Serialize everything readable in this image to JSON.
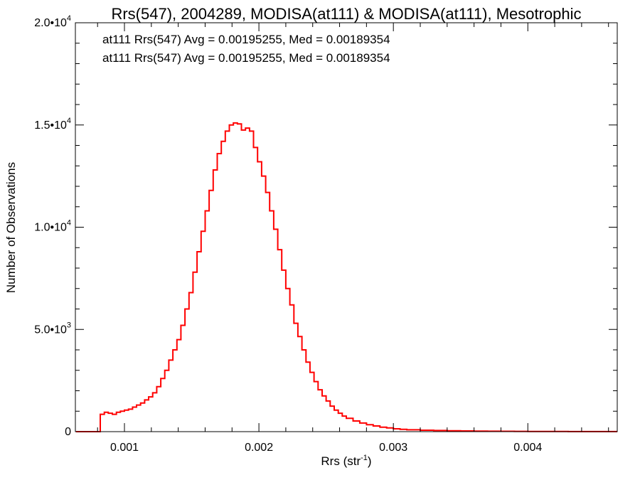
{
  "chart_data": {
    "type": "line",
    "title": "Rrs(547), 2004289, MODISA(at111) & MODISA(at111), Mesotrophic",
    "xlabel": "Rrs (str",
    "xlabel_sup": "-1",
    "xlabel_end": ")",
    "ylabel": "Number of Observations",
    "xlim": [
      0.000635,
      0.004665
    ],
    "ylim": [
      0,
      20000
    ],
    "x_ticks": [
      {
        "value": 0.001,
        "label": "0.001"
      },
      {
        "value": 0.002,
        "label": "0.002"
      },
      {
        "value": 0.003,
        "label": "0.003"
      },
      {
        "value": 0.004,
        "label": "0.004"
      }
    ],
    "y_ticks": [
      {
        "value": 0,
        "mant": "0",
        "exp": ""
      },
      {
        "value": 5000,
        "mant": "5.0•10",
        "exp": "3"
      },
      {
        "value": 10000,
        "mant": "1.0•10",
        "exp": "4"
      },
      {
        "value": 15000,
        "mant": "1.5•10",
        "exp": "4"
      },
      {
        "value": 20000,
        "mant": "2.0•10",
        "exp": "4"
      }
    ],
    "annotations": [
      {
        "text": "at111 Rrs(547) Avg = 0.00195255, Med = 0.00189354",
        "color": "#000000"
      },
      {
        "text": "at111 Rrs(547) Avg = 0.00195255, Med = 0.00189354",
        "color": "#ff0000"
      }
    ],
    "series": [
      {
        "color": "#ff0000",
        "x": [
          0.00064,
          0.0007,
          0.00076,
          0.00079,
          0.00082,
          0.00085,
          0.00088,
          0.00091,
          0.00094,
          0.00097,
          0.001,
          0.00103,
          0.00106,
          0.00109,
          0.00112,
          0.00115,
          0.00118,
          0.00121,
          0.00124,
          0.00127,
          0.0013,
          0.00133,
          0.00136,
          0.00139,
          0.00142,
          0.00145,
          0.00148,
          0.00151,
          0.00154,
          0.00157,
          0.0016,
          0.00163,
          0.00166,
          0.00169,
          0.00172,
          0.00175,
          0.00178,
          0.00181,
          0.00184,
          0.00187,
          0.0019,
          0.00193,
          0.00196,
          0.00199,
          0.00202,
          0.00205,
          0.00208,
          0.00211,
          0.00214,
          0.00217,
          0.0022,
          0.00223,
          0.00226,
          0.00229,
          0.00232,
          0.00235,
          0.00238,
          0.00241,
          0.00244,
          0.00247,
          0.0025,
          0.00253,
          0.00256,
          0.00259,
          0.00262,
          0.00265,
          0.0027,
          0.00275,
          0.0028,
          0.00285,
          0.0029,
          0.00295,
          0.003,
          0.00305,
          0.0031,
          0.0032,
          0.0033,
          0.0034,
          0.0035,
          0.0036,
          0.0037,
          0.0038,
          0.0039,
          0.004,
          0.0041,
          0.0042,
          0.0043,
          0.0044,
          0.0045,
          0.0046,
          0.00466
        ],
        "y": [
          0,
          0,
          0,
          0,
          850,
          950,
          900,
          850,
          950,
          1000,
          1050,
          1100,
          1200,
          1300,
          1400,
          1550,
          1700,
          1900,
          2200,
          2600,
          3000,
          3500,
          4000,
          4500,
          5200,
          6000,
          6800,
          7800,
          8800,
          9800,
          10800,
          11800,
          12800,
          13600,
          14200,
          14700,
          15000,
          15100,
          15050,
          14750,
          14850,
          14700,
          13900,
          13200,
          12500,
          11700,
          10800,
          9900,
          8900,
          7900,
          7000,
          6200,
          5300,
          4650,
          4000,
          3400,
          2900,
          2450,
          2050,
          1750,
          1500,
          1250,
          1050,
          900,
          760,
          650,
          520,
          420,
          340,
          280,
          220,
          180,
          140,
          110,
          90,
          70,
          55,
          45,
          35,
          28,
          22,
          18,
          14,
          10,
          8,
          6,
          5,
          4,
          3,
          2,
          2
        ]
      }
    ]
  }
}
